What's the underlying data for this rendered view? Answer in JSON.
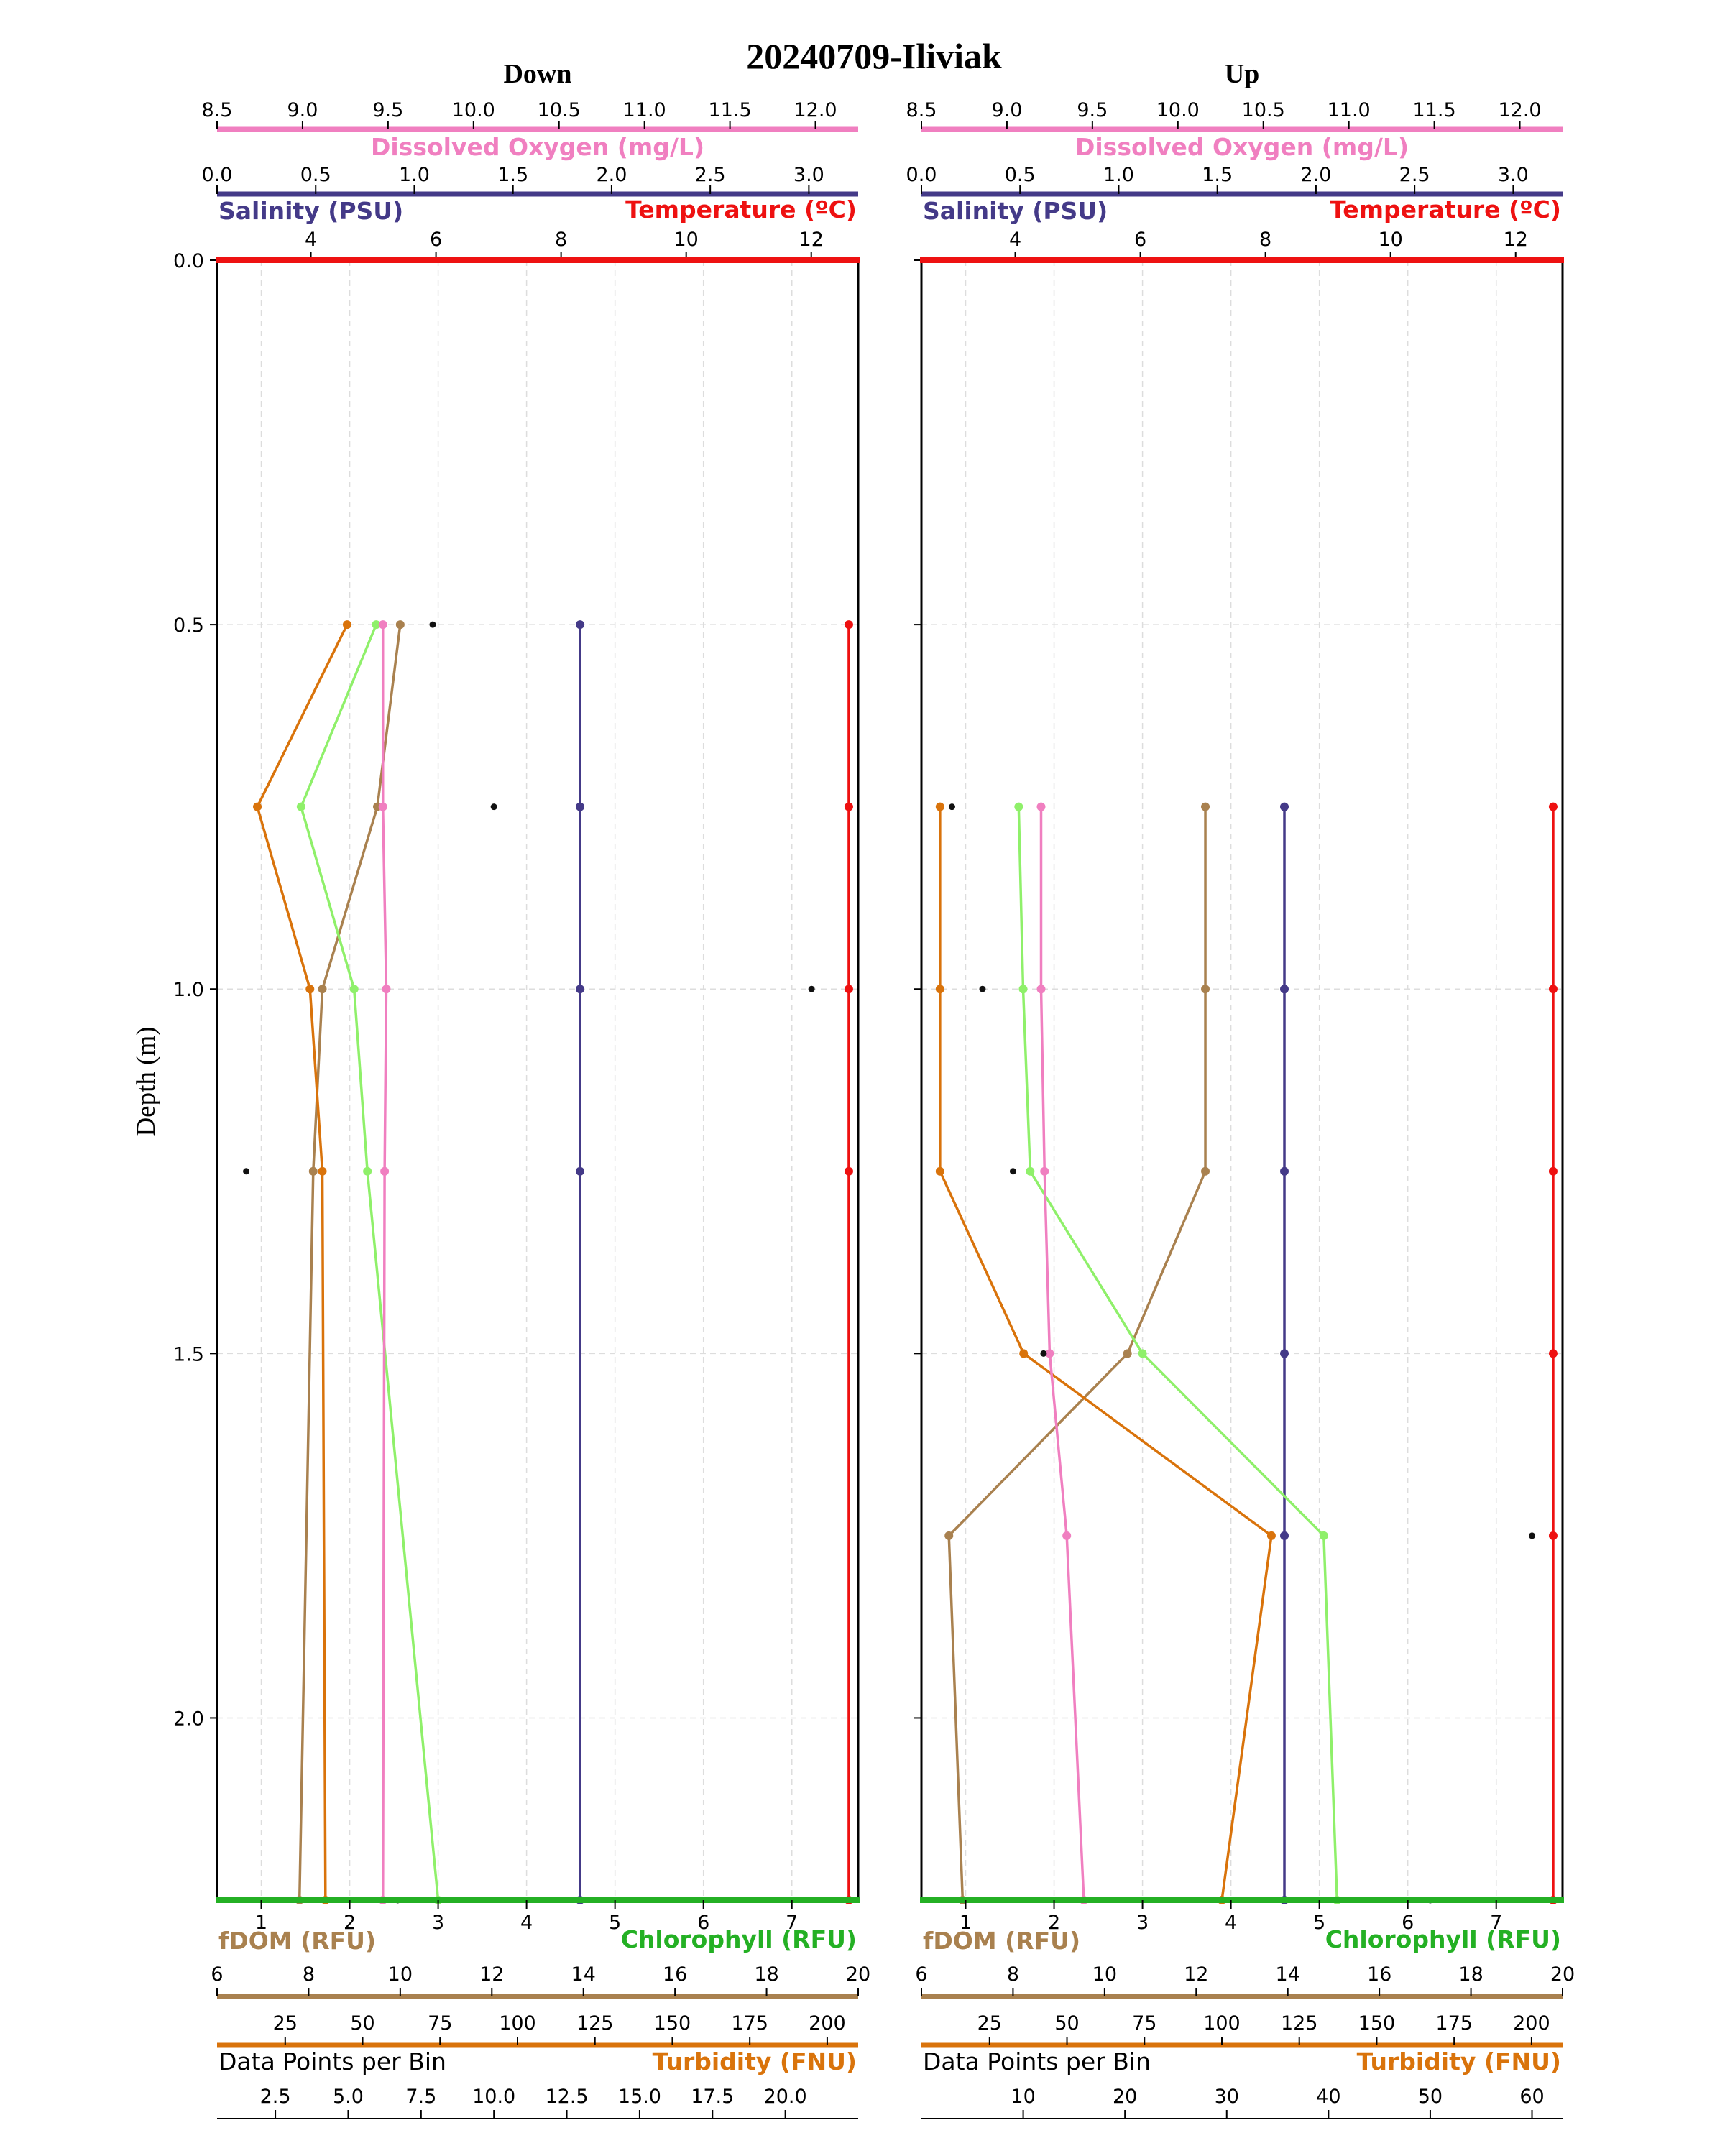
{
  "figure": {
    "title": "20240709-Iliviak",
    "ylabel": "Depth (m)"
  },
  "colors": {
    "temperature": "#ee1111",
    "salinity": "#443a88",
    "oxygen": "#f07fc0",
    "chlorophyll": "#24b024",
    "chlorophyll_line": "#8ff06a",
    "fdom": "#a9814f",
    "turbidity": "#d9730b",
    "points": "#111111",
    "grid": "#dddddd"
  },
  "chart_data": [
    {
      "type": "line",
      "title": "Down",
      "ylabel": "Depth (m)",
      "ylim": [
        0,
        2.25
      ],
      "yticks": [
        0.0,
        0.5,
        1.0,
        1.5,
        2.0
      ],
      "y_inverted": true,
      "grid": true,
      "axes": {
        "oxygen": {
          "label": "Dissolved Oxygen (mg/L)",
          "lim": [
            8.5,
            12.25
          ],
          "ticks": [
            8.5,
            9.0,
            9.5,
            10.0,
            10.5,
            11.0,
            11.5,
            12.0
          ]
        },
        "salinity": {
          "label": "Salinity (PSU)",
          "lim": [
            0,
            3.25
          ],
          "ticks": [
            0.0,
            0.5,
            1.0,
            1.5,
            2.0,
            2.5,
            3.0
          ]
        },
        "temperature": {
          "label": "Temperature (ºC)",
          "lim": [
            2.5,
            12.75
          ],
          "ticks": [
            4,
            6,
            8,
            10,
            12
          ]
        },
        "chlorophyll": {
          "label": "Chlorophyll (RFU)",
          "lim": [
            0.5,
            7.75
          ],
          "ticks": [
            1,
            2,
            3,
            4,
            5,
            6,
            7
          ]
        },
        "fdom": {
          "label": "fDOM (RFU)",
          "lim": [
            6,
            20
          ],
          "ticks": [
            6,
            8,
            10,
            12,
            14,
            16,
            18,
            20
          ]
        },
        "turbidity": {
          "label": "Turbidity (FNU)",
          "lim": [
            3,
            210
          ],
          "ticks": [
            25,
            50,
            75,
            100,
            125,
            150,
            175,
            200
          ]
        },
        "points": {
          "label": "Data Points per Bin",
          "lim": [
            0.5,
            22.5
          ],
          "ticks": [
            2.5,
            5.0,
            7.5,
            10.0,
            12.5,
            15.0,
            17.5,
            20.0
          ]
        }
      },
      "series": [
        {
          "name": "Temperature (ºC)",
          "key": "temperature",
          "x": [
            12.6,
            12.6,
            12.6,
            12.6,
            12.6
          ],
          "y": [
            0.5,
            0.75,
            1.0,
            1.25,
            2.25
          ]
        },
        {
          "name": "Salinity (PSU)",
          "key": "salinity",
          "x": [
            1.84,
            1.84,
            1.84,
            1.84,
            1.84
          ],
          "y": [
            0.5,
            0.75,
            1.0,
            1.25,
            2.25
          ]
        },
        {
          "name": "Dissolved Oxygen (mg/L)",
          "key": "oxygen",
          "x": [
            9.47,
            9.47,
            9.49,
            9.48,
            9.47
          ],
          "y": [
            0.5,
            0.75,
            1.0,
            1.25,
            2.25
          ]
        },
        {
          "name": "Chlorophyll (RFU)",
          "key": "chlorophyll",
          "x": [
            2.3,
            1.45,
            2.05,
            2.2,
            3.0
          ],
          "y": [
            0.5,
            0.75,
            1.0,
            1.25,
            2.25
          ]
        },
        {
          "name": "fDOM (RFU)",
          "key": "fdom",
          "x": [
            10.0,
            9.5,
            8.3,
            8.1,
            7.8
          ],
          "y": [
            0.5,
            0.75,
            1.0,
            1.25,
            2.25
          ]
        },
        {
          "name": "Turbidity (FNU)",
          "key": "turbidity",
          "x": [
            45,
            16,
            33,
            37,
            38
          ],
          "y": [
            0.5,
            0.75,
            1.0,
            1.25,
            2.25
          ]
        },
        {
          "name": "Data Points per Bin",
          "key": "points",
          "x": [
            7.9,
            10.0,
            20.9,
            1.5,
            6.7
          ],
          "y": [
            0.5,
            0.75,
            1.0,
            1.25,
            2.25
          ]
        }
      ]
    },
    {
      "type": "line",
      "title": "Up",
      "ylabel": "Depth (m)",
      "ylim": [
        0,
        2.25
      ],
      "yticks": [
        0.0,
        0.5,
        1.0,
        1.5,
        2.0
      ],
      "y_inverted": true,
      "grid": true,
      "axes": {
        "oxygen": {
          "label": "Dissolved Oxygen (mg/L)",
          "lim": [
            8.5,
            12.25
          ],
          "ticks": [
            8.5,
            9.0,
            9.5,
            10.0,
            10.5,
            11.0,
            11.5,
            12.0
          ]
        },
        "salinity": {
          "label": "Salinity (PSU)",
          "lim": [
            0,
            3.25
          ],
          "ticks": [
            0.0,
            0.5,
            1.0,
            1.5,
            2.0,
            2.5,
            3.0
          ]
        },
        "temperature": {
          "label": "Temperature (ºC)",
          "lim": [
            2.5,
            12.75
          ],
          "ticks": [
            4,
            6,
            8,
            10,
            12
          ]
        },
        "chlorophyll": {
          "label": "Chlorophyll (RFU)",
          "lim": [
            0.5,
            7.75
          ],
          "ticks": [
            1,
            2,
            3,
            4,
            5,
            6,
            7
          ]
        },
        "fdom": {
          "label": "fDOM (RFU)",
          "lim": [
            6,
            20
          ],
          "ticks": [
            6,
            8,
            10,
            12,
            14,
            16,
            18,
            20
          ]
        },
        "turbidity": {
          "label": "Turbidity (FNU)",
          "lim": [
            3,
            210
          ],
          "ticks": [
            25,
            50,
            75,
            100,
            125,
            150,
            175,
            200
          ]
        },
        "points": {
          "label": "Data Points per Bin",
          "lim": [
            0,
            63
          ],
          "ticks": [
            10,
            20,
            30,
            40,
            50,
            60
          ]
        }
      },
      "series": [
        {
          "name": "Temperature (ºC)",
          "key": "temperature",
          "x": [
            12.6,
            12.6,
            12.6,
            12.6,
            12.6,
            12.6
          ],
          "y": [
            0.75,
            1.0,
            1.25,
            1.5,
            1.75,
            2.25
          ]
        },
        {
          "name": "Salinity (PSU)",
          "key": "salinity",
          "x": [
            1.84,
            1.84,
            1.84,
            1.84,
            1.84,
            1.84
          ],
          "y": [
            0.75,
            1.0,
            1.25,
            1.5,
            1.75,
            2.25
          ]
        },
        {
          "name": "Dissolved Oxygen (mg/L)",
          "key": "oxygen",
          "x": [
            9.2,
            9.2,
            9.22,
            9.25,
            9.35,
            9.45
          ],
          "y": [
            0.75,
            1.0,
            1.25,
            1.5,
            1.75,
            2.25
          ]
        },
        {
          "name": "Chlorophyll (RFU)",
          "key": "chlorophyll",
          "x": [
            1.6,
            1.65,
            1.73,
            3.0,
            5.05,
            5.2
          ],
          "y": [
            0.75,
            1.0,
            1.25,
            1.5,
            1.75,
            2.25
          ]
        },
        {
          "name": "fDOM (RFU)",
          "key": "fdom",
          "x": [
            12.2,
            12.2,
            12.2,
            10.5,
            6.6,
            6.9
          ],
          "y": [
            0.75,
            1.0,
            1.25,
            1.5,
            1.75,
            2.25
          ]
        },
        {
          "name": "Turbidity (FNU)",
          "key": "turbidity",
          "x": [
            9,
            9,
            9,
            36,
            116,
            100
          ],
          "y": [
            0.75,
            1.0,
            1.25,
            1.5,
            1.75,
            2.25
          ]
        },
        {
          "name": "Data Points per Bin",
          "key": "points",
          "x": [
            3,
            6,
            9,
            12,
            60,
            50
          ],
          "y": [
            0.75,
            1.0,
            1.25,
            1.5,
            1.75,
            2.25
          ]
        }
      ]
    }
  ]
}
